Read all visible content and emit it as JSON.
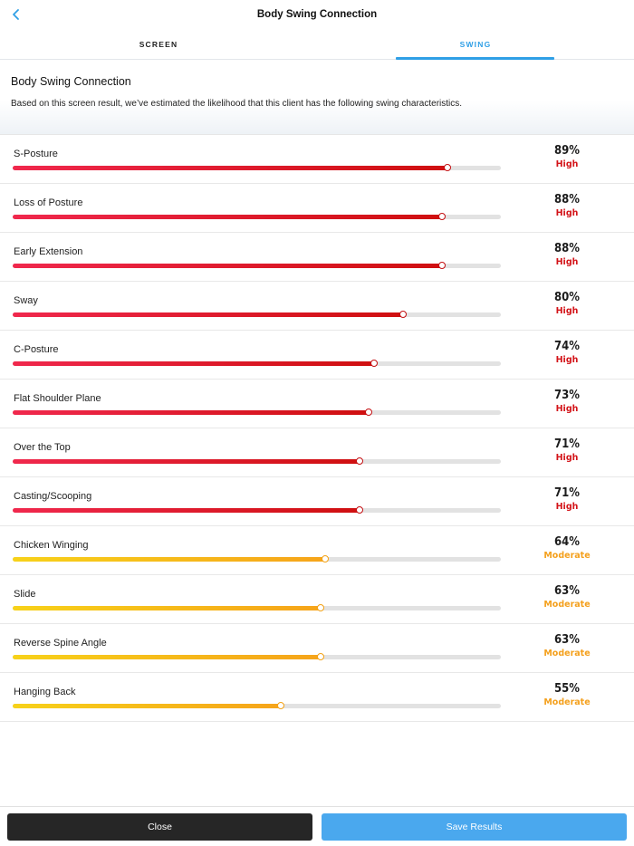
{
  "header": {
    "title": "Body Swing Connection"
  },
  "tabs": [
    {
      "label": "SCREEN",
      "active": false
    },
    {
      "label": "SWING",
      "active": true
    }
  ],
  "intro": {
    "heading": "Body Swing Connection",
    "description": "Based on this screen result, we’ve estimated the likelihood that this client has the following swing characteristics."
  },
  "colors": {
    "high": "#d31419",
    "moderate": "#f4a01d",
    "accent": "#2f9fe6"
  },
  "characteristics": [
    {
      "name": "S-Posture",
      "percent": "89%",
      "value": 89,
      "level": "High"
    },
    {
      "name": "Loss of Posture",
      "percent": "88%",
      "value": 88,
      "level": "High"
    },
    {
      "name": "Early Extension",
      "percent": "88%",
      "value": 88,
      "level": "High"
    },
    {
      "name": "Sway",
      "percent": "80%",
      "value": 80,
      "level": "High"
    },
    {
      "name": "C-Posture",
      "percent": "74%",
      "value": 74,
      "level": "High"
    },
    {
      "name": "Flat Shoulder Plane",
      "percent": "73%",
      "value": 73,
      "level": "High"
    },
    {
      "name": "Over the Top",
      "percent": "71%",
      "value": 71,
      "level": "High"
    },
    {
      "name": "Casting/Scooping",
      "percent": "71%",
      "value": 71,
      "level": "High"
    },
    {
      "name": "Chicken Winging",
      "percent": "64%",
      "value": 64,
      "level": "Moderate"
    },
    {
      "name": "Slide",
      "percent": "63%",
      "value": 63,
      "level": "Moderate"
    },
    {
      "name": "Reverse Spine Angle",
      "percent": "63%",
      "value": 63,
      "level": "Moderate"
    },
    {
      "name": "Hanging Back",
      "percent": "55%",
      "value": 55,
      "level": "Moderate"
    }
  ],
  "footer": {
    "close_label": "Close",
    "save_label": "Save Results"
  }
}
